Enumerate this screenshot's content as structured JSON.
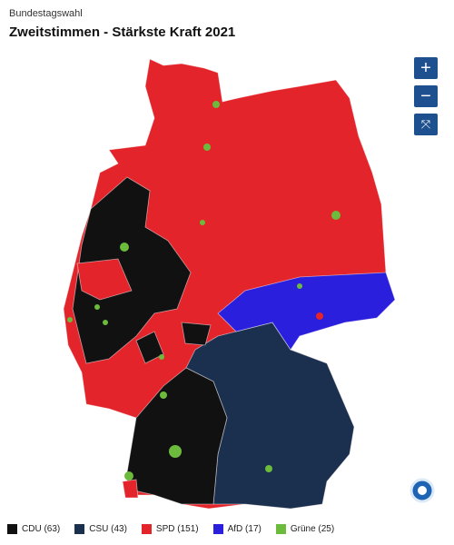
{
  "header": {
    "kicker": "Bundestagswahl",
    "title": "Zweitstimmen - Stärkste Kraft 2021"
  },
  "legend": [
    {
      "label": "CDU (63)",
      "color": "#111111"
    },
    {
      "label": "CSU (43)",
      "color": "#1b2f4f"
    },
    {
      "label": "SPD (151)",
      "color": "#e3242b"
    },
    {
      "label": "AfD (17)",
      "color": "#2a1fdc"
    },
    {
      "label": "Grüne (25)",
      "color": "#6cbb3c"
    }
  ]
}
